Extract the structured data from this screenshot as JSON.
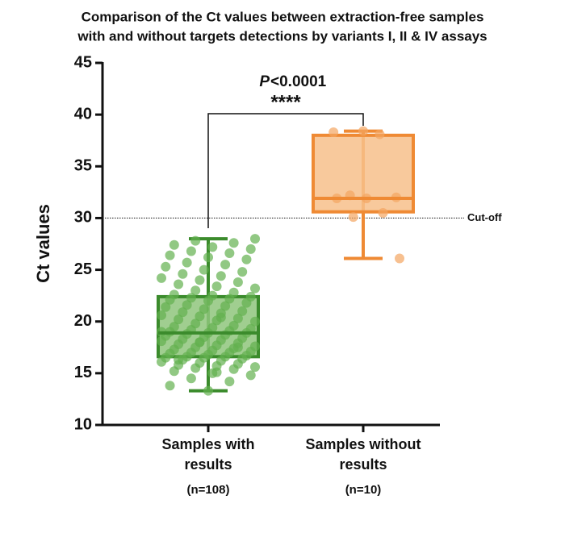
{
  "chart_data": {
    "type": "box",
    "title": [
      "Comparison of the Ct values between extraction-free samples",
      "with and without targets detections by variants I, II & IV assays"
    ],
    "y_label": "Ct values",
    "ylim": [
      10,
      45
    ],
    "yticks": [
      10,
      15,
      20,
      25,
      30,
      35,
      40,
      45
    ],
    "categories": [
      [
        "Samples with",
        "results"
      ],
      [
        "Samples without",
        "results"
      ]
    ],
    "sample_labels": [
      "(n=108)",
      "(n=10)"
    ],
    "groups": [
      {
        "color": "#3b8b2c",
        "fill": "#8fc57d",
        "point_color": "#62b04e",
        "min": 13.3,
        "q1": 16.6,
        "median": 18.9,
        "q3": 22.4,
        "max": 28.0,
        "points": [
          13.3,
          13.8,
          14.2,
          14.5,
          14.8,
          15.0,
          15.2,
          15.4,
          15.5,
          15.6,
          15.7,
          15.8,
          15.9,
          16.0,
          16.1,
          16.2,
          16.3,
          16.4,
          16.5,
          16.5,
          16.6,
          16.6,
          16.7,
          16.8,
          16.9,
          17.0,
          17.0,
          17.1,
          17.2,
          17.3,
          17.4,
          17.5,
          17.6,
          17.7,
          17.8,
          17.9,
          18.0,
          18.1,
          18.2,
          18.3,
          18.4,
          18.5,
          18.6,
          18.7,
          18.8,
          18.9,
          18.9,
          19.0,
          19.1,
          19.2,
          19.3,
          19.4,
          19.5,
          19.6,
          19.8,
          20.0,
          20.1,
          20.2,
          20.3,
          20.5,
          20.6,
          20.8,
          20.9,
          21.0,
          21.2,
          21.4,
          21.5,
          21.6,
          21.8,
          22.0,
          22.1,
          22.2,
          22.3,
          22.4,
          22.5,
          22.6,
          22.8,
          23.0,
          23.2,
          23.4,
          23.6,
          23.8,
          24.0,
          24.2,
          24.4,
          24.6,
          24.8,
          25.0,
          25.3,
          25.5,
          25.7,
          26.0,
          26.2,
          26.4,
          26.6,
          26.8,
          27.0,
          27.2,
          27.4,
          27.6,
          27.8,
          28.0,
          15.1,
          16.3,
          17.5,
          18.0,
          19.0,
          20.4
        ]
      },
      {
        "color": "#ef8a34",
        "fill": "#f7c08b",
        "point_color": "#f4a561",
        "min": 26.1,
        "q1": 30.6,
        "median": 31.9,
        "q3": 38.0,
        "max": 38.4,
        "points": [
          38.4,
          38.3,
          38.1,
          32.2,
          32.0,
          31.9,
          31.9,
          30.5,
          30.1,
          26.1
        ]
      }
    ],
    "cutoff": {
      "value": 30,
      "label": "Cut-off"
    },
    "significance": {
      "p_symbol": "P",
      "p_value": "<0.0001",
      "stars": "****"
    }
  }
}
